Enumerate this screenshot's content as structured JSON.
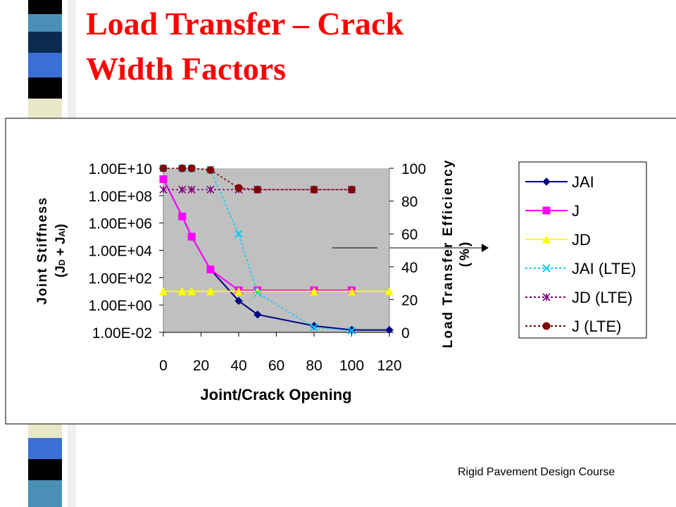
{
  "title": "Load Transfer – Crack Width Factors",
  "footer": "Rigid Pavement Design Course",
  "chart_data": {
    "type": "line",
    "x_label": "Joint/Crack Opening",
    "y_label": "Joint Stiffness",
    "y_label_2": [
      "(J",
      "D",
      " + J",
      "AI",
      ")"
    ],
    "y2_label": "Load Transfer Efficiency",
    "y2_label_2": "(%)",
    "xlim": [
      0,
      120
    ],
    "xticks": [
      0,
      20,
      40,
      60,
      80,
      100,
      120
    ],
    "ylog": true,
    "ylim": [
      0.01,
      10000000000
    ],
    "yticks": [
      {
        "value": 0.01,
        "label": "1.00E-02"
      },
      {
        "value": 1,
        "label": "1.00E+00"
      },
      {
        "value": 100,
        "label": "1.00E+02"
      },
      {
        "value": 10000,
        "label": "1.00E+04"
      },
      {
        "value": 1000000,
        "label": "1.00E+06"
      },
      {
        "value": 100000000,
        "label": "1.00E+08"
      },
      {
        "value": 10000000000,
        "label": "1.00E+10"
      }
    ],
    "y2lim": [
      0,
      100
    ],
    "y2ticks": [
      0,
      20,
      40,
      60,
      80,
      100
    ],
    "grid": false,
    "legend": "right",
    "series": [
      {
        "name": "JAI",
        "color": "#000080",
        "marker": "diamond",
        "dash": "solid",
        "x": [
          0,
          10,
          15,
          25,
          40,
          50,
          80,
          100,
          120
        ],
        "values": [
          1600000000,
          3000000,
          100000,
          400,
          2,
          0.2,
          0.03,
          0.015,
          0.015
        ]
      },
      {
        "name": "J",
        "color": "#ff00ff",
        "marker": "square",
        "dash": "solid",
        "x": [
          0,
          10,
          15,
          25,
          40,
          50,
          80,
          100
        ],
        "values": [
          1600000000,
          3000000,
          100000,
          400,
          12,
          12,
          12,
          12
        ]
      },
      {
        "name": "JD",
        "color": "#ffff00",
        "marker": "triangle",
        "dash": "solid",
        "x": [
          0,
          10,
          15,
          25,
          40,
          50,
          80,
          100,
          120
        ],
        "values": [
          10,
          10,
          10,
          10,
          10,
          10,
          10,
          10,
          10
        ]
      },
      {
        "name": "JAI (LTE)",
        "color": "#00ccff",
        "marker": "x",
        "dash": "dotted",
        "axis": "y2",
        "x": [
          0,
          10,
          15,
          25,
          40,
          50,
          80,
          100
        ],
        "values": [
          100,
          100,
          100,
          99,
          60,
          24,
          3,
          1
        ]
      },
      {
        "name": "JD (LTE)",
        "color": "#800080",
        "marker": "asterisk",
        "dash": "dotted",
        "axis": "y2",
        "x": [
          0,
          10,
          15,
          25,
          40,
          50,
          80,
          100
        ],
        "values": [
          87,
          87,
          87,
          87,
          87,
          87,
          87,
          87
        ]
      },
      {
        "name": "J (LTE)",
        "color": "#800000",
        "marker": "circle",
        "dash": "dotted",
        "axis": "y2",
        "x": [
          0,
          10,
          15,
          25,
          40,
          50,
          80,
          100
        ],
        "values": [
          100,
          100,
          100,
          99,
          88,
          87,
          87,
          87
        ]
      }
    ]
  }
}
